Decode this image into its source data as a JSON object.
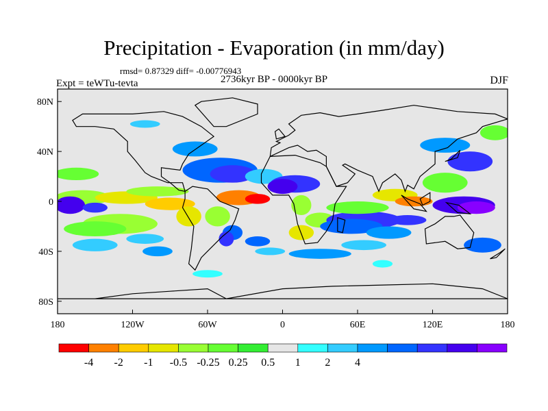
{
  "title": "Precipitation - Evaporation (in mm/day)",
  "stats": "rmsd= 0.87329 diff= -0.00776943",
  "period": "2736kyr BP - 0000kyr BP",
  "experiment": "Expt = teWTu-tevta",
  "season": "DJF",
  "map": {
    "projection": "cylindrical-equidistant",
    "lon_range": [
      -180,
      180
    ],
    "lat_range": [
      -90,
      90
    ],
    "land_color": "#e6e6e6",
    "coastline_color": "#000000",
    "lon_ticks": [
      {
        "value": -180,
        "label": "180"
      },
      {
        "value": -120,
        "label": "120W"
      },
      {
        "value": -60,
        "label": "60W"
      },
      {
        "value": 0,
        "label": "0"
      },
      {
        "value": 60,
        "label": "60E"
      },
      {
        "value": 120,
        "label": "120E"
      },
      {
        "value": 180,
        "label": "180"
      }
    ],
    "lat_ticks": [
      {
        "value": 80,
        "label": "80N"
      },
      {
        "value": 40,
        "label": "40N"
      },
      {
        "value": 0,
        "label": "0"
      },
      {
        "value": -40,
        "label": "40S"
      },
      {
        "value": -80,
        "label": "80S"
      }
    ]
  },
  "colorbar": {
    "colors": [
      "#ff0000",
      "#ff8000",
      "#ffcc00",
      "#e6e600",
      "#99ff33",
      "#66ff33",
      "#33ee33",
      "#e6e6e6",
      "#33ffff",
      "#33ccff",
      "#0099ff",
      "#0066ff",
      "#3333ff",
      "#4400ee",
      "#8800ff"
    ],
    "labels": [
      "-4",
      "-2",
      "-1",
      "-0.5",
      "-0.25",
      "0.25",
      "0.5",
      "1",
      "2",
      "4"
    ]
  },
  "icons": [
    "land-outline",
    "contour-shading"
  ]
}
